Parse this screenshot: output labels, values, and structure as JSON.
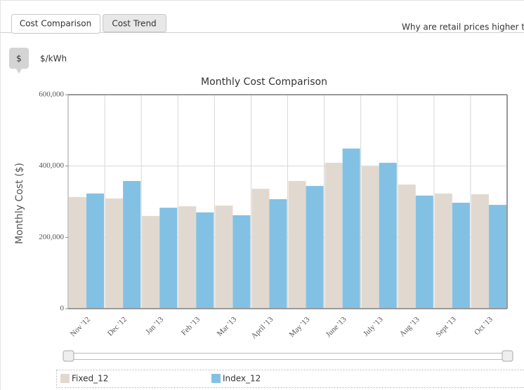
{
  "tabs": [
    "Cost Comparison",
    "Cost Trend"
  ],
  "header_text": "Why are retail prices higher th",
  "unit_buttons": [
    "$",
    "$/kWh"
  ],
  "chart_data": {
    "type": "bar",
    "title": "Monthly Cost Comparison",
    "y_label": "Monthly Cost ($)",
    "categories": [
      "Nov '12",
      "Dec '12",
      "Jan '13",
      "Feb '13",
      "Mar '13",
      "April '13",
      "May '13",
      "June '13",
      "July '13",
      "Aug '13",
      "Sept '13",
      "Oct '13"
    ],
    "series": [
      {
        "name": "Fixed_12",
        "color": "#e1d9cf",
        "values": [
          313000,
          309000,
          260000,
          287000,
          289000,
          336000,
          358000,
          409000,
          399000,
          348000,
          323000,
          321000
        ]
      },
      {
        "name": "Index_12",
        "color": "#82c1e4",
        "values": [
          323000,
          358000,
          283000,
          270000,
          262000,
          307000,
          344000,
          449000,
          409000,
          317000,
          297000,
          291000
        ]
      }
    ],
    "ylim": [
      0,
      600000
    ],
    "yticks": [
      0,
      {
        "value": 200000,
        "label": "200,000"
      },
      {
        "value": 400000,
        "label": "400,000"
      },
      {
        "value": 600000,
        "label": "600,000"
      }
    ],
    "grid": true
  }
}
